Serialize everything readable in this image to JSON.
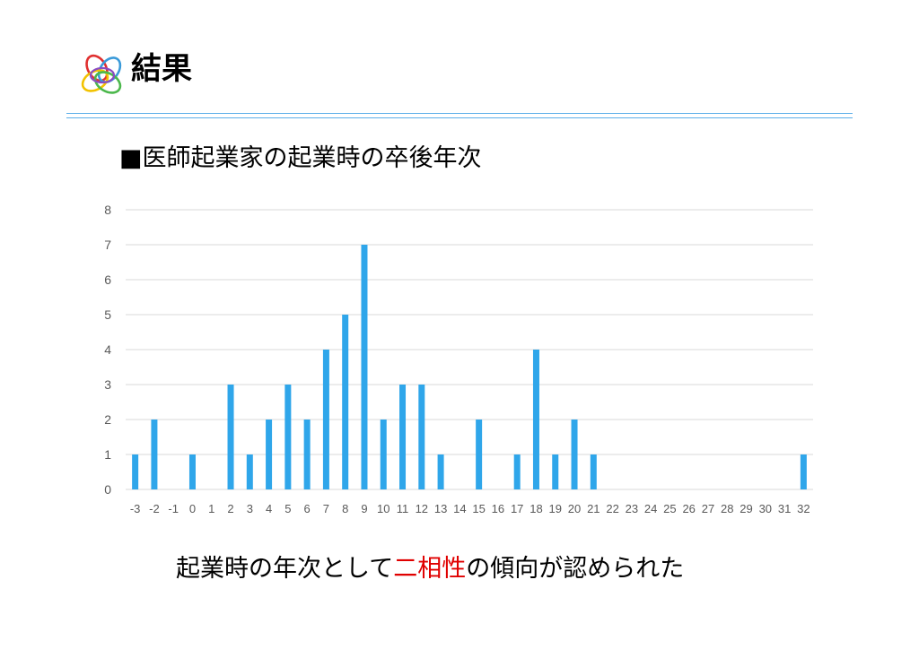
{
  "header": {
    "title": "結果",
    "logo_icon": "flower-knot-logo-icon"
  },
  "colors": {
    "bar": "#2fa6ea",
    "rule": "#5aaee8",
    "highlight": "#e00000",
    "grid": "#d9d9d9",
    "tick_text": "#595959"
  },
  "chart_title": "■医師起業家の起業時の卒後年次",
  "conclusion": {
    "before": "起業時の年次として",
    "highlight": "二相性",
    "after": "の傾向が認められた"
  },
  "chart_data": {
    "type": "bar",
    "title": "■医師起業家の起業時の卒後年次",
    "xlabel": "",
    "ylabel": "",
    "ylim": [
      0,
      8
    ],
    "yticks": [
      0,
      1,
      2,
      3,
      4,
      5,
      6,
      7,
      8
    ],
    "grid": true,
    "legend": "none",
    "categories": [
      "-3",
      "-2",
      "-1",
      "0",
      "1",
      "2",
      "3",
      "4",
      "5",
      "6",
      "7",
      "8",
      "9",
      "10",
      "11",
      "12",
      "13",
      "14",
      "15",
      "16",
      "17",
      "18",
      "19",
      "20",
      "21",
      "22",
      "23",
      "24",
      "25",
      "26",
      "27",
      "28",
      "29",
      "30",
      "31",
      "32"
    ],
    "values": [
      1,
      2,
      0,
      1,
      0,
      3,
      1,
      2,
      3,
      2,
      4,
      5,
      7,
      2,
      3,
      3,
      1,
      0,
      2,
      0,
      1,
      4,
      1,
      2,
      1,
      0,
      0,
      0,
      0,
      0,
      0,
      0,
      0,
      0,
      0,
      1
    ]
  }
}
